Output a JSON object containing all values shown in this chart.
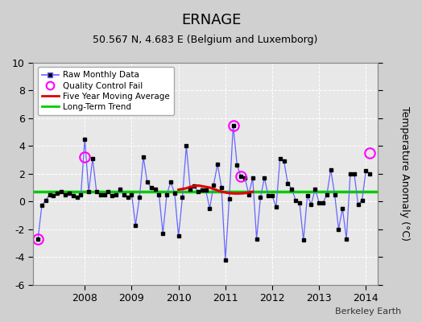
{
  "title": "ERNAGE",
  "subtitle": "50.567 N, 4.683 E (Belgium and Luxemborg)",
  "ylabel": "Temperature Anomaly (°C)",
  "credit": "Berkeley Earth",
  "ylim": [
    -6,
    10
  ],
  "yticks": [
    -6,
    -4,
    -2,
    0,
    2,
    4,
    6,
    8,
    10
  ],
  "xlim": [
    2006.9,
    2014.25
  ],
  "xticks": [
    2008,
    2009,
    2010,
    2011,
    2012,
    2013,
    2014
  ],
  "long_term_trend_y": 0.7,
  "raw_data": [
    [
      2007.0,
      -2.7
    ],
    [
      2007.083,
      -0.3
    ],
    [
      2007.167,
      0.1
    ],
    [
      2007.25,
      0.5
    ],
    [
      2007.333,
      0.4
    ],
    [
      2007.417,
      0.6
    ],
    [
      2007.5,
      0.7
    ],
    [
      2007.583,
      0.5
    ],
    [
      2007.667,
      0.6
    ],
    [
      2007.75,
      0.4
    ],
    [
      2007.833,
      0.3
    ],
    [
      2007.917,
      0.5
    ],
    [
      2008.0,
      4.5
    ],
    [
      2008.083,
      0.7
    ],
    [
      2008.167,
      3.1
    ],
    [
      2008.25,
      0.7
    ],
    [
      2008.333,
      0.5
    ],
    [
      2008.417,
      0.5
    ],
    [
      2008.5,
      0.7
    ],
    [
      2008.583,
      0.4
    ],
    [
      2008.667,
      0.5
    ],
    [
      2008.75,
      0.9
    ],
    [
      2008.833,
      0.5
    ],
    [
      2008.917,
      0.3
    ],
    [
      2009.0,
      0.5
    ],
    [
      2009.083,
      -1.7
    ],
    [
      2009.167,
      0.3
    ],
    [
      2009.25,
      3.2
    ],
    [
      2009.333,
      1.4
    ],
    [
      2009.417,
      1.0
    ],
    [
      2009.5,
      0.9
    ],
    [
      2009.583,
      0.5
    ],
    [
      2009.667,
      -2.3
    ],
    [
      2009.75,
      0.5
    ],
    [
      2009.833,
      1.4
    ],
    [
      2009.917,
      0.6
    ],
    [
      2010.0,
      -2.5
    ],
    [
      2010.083,
      0.3
    ],
    [
      2010.167,
      4.0
    ],
    [
      2010.25,
      0.9
    ],
    [
      2010.333,
      1.1
    ],
    [
      2010.417,
      0.7
    ],
    [
      2010.5,
      0.8
    ],
    [
      2010.583,
      0.8
    ],
    [
      2010.667,
      -0.5
    ],
    [
      2010.75,
      1.2
    ],
    [
      2010.833,
      2.7
    ],
    [
      2010.917,
      1.0
    ],
    [
      2011.0,
      -4.2
    ],
    [
      2011.083,
      0.2
    ],
    [
      2011.167,
      5.5
    ],
    [
      2011.25,
      2.6
    ],
    [
      2011.333,
      1.8
    ],
    [
      2011.417,
      1.7
    ],
    [
      2011.5,
      0.5
    ],
    [
      2011.583,
      1.7
    ],
    [
      2011.667,
      -2.7
    ],
    [
      2011.75,
      0.3
    ],
    [
      2011.833,
      1.7
    ],
    [
      2011.917,
      0.4
    ],
    [
      2012.0,
      0.4
    ],
    [
      2012.083,
      -0.4
    ],
    [
      2012.167,
      3.1
    ],
    [
      2012.25,
      2.9
    ],
    [
      2012.333,
      1.3
    ],
    [
      2012.417,
      0.9
    ],
    [
      2012.5,
      0.1
    ],
    [
      2012.583,
      -0.1
    ],
    [
      2012.667,
      -2.8
    ],
    [
      2012.75,
      0.4
    ],
    [
      2012.833,
      -0.2
    ],
    [
      2012.917,
      0.9
    ],
    [
      2013.0,
      -0.1
    ],
    [
      2013.083,
      -0.1
    ],
    [
      2013.167,
      0.5
    ],
    [
      2013.25,
      2.3
    ],
    [
      2013.333,
      0.5
    ],
    [
      2013.417,
      -2.0
    ],
    [
      2013.5,
      -0.5
    ],
    [
      2013.583,
      -2.7
    ],
    [
      2013.667,
      2.0
    ],
    [
      2013.75,
      2.0
    ],
    [
      2013.833,
      -0.2
    ],
    [
      2013.917,
      0.1
    ],
    [
      2014.0,
      2.2
    ],
    [
      2014.083,
      2.0
    ]
  ],
  "qc_fail": [
    [
      2007.0,
      -2.7
    ],
    [
      2008.0,
      3.2
    ],
    [
      2011.167,
      5.5
    ],
    [
      2011.333,
      1.8
    ],
    [
      2014.083,
      3.5
    ]
  ],
  "five_year_avg": [
    [
      2010.0,
      0.85
    ],
    [
      2010.083,
      0.9
    ],
    [
      2010.167,
      0.95
    ],
    [
      2010.25,
      1.05
    ],
    [
      2010.333,
      1.1
    ],
    [
      2010.417,
      1.15
    ],
    [
      2010.5,
      1.1
    ],
    [
      2010.583,
      1.05
    ],
    [
      2010.667,
      1.0
    ],
    [
      2010.75,
      0.9
    ],
    [
      2010.833,
      0.8
    ],
    [
      2010.917,
      0.7
    ],
    [
      2011.0,
      0.65
    ],
    [
      2011.083,
      0.6
    ],
    [
      2011.167,
      0.58
    ],
    [
      2011.25,
      0.57
    ],
    [
      2011.333,
      0.58
    ],
    [
      2011.417,
      0.6
    ],
    [
      2011.5,
      0.65
    ],
    [
      2011.583,
      0.7
    ]
  ],
  "line_color": "#6666ff",
  "dot_color": "#000000",
  "qc_color": "#ff00ff",
  "avg_color": "#dd0000",
  "trend_color": "#00cc00",
  "plot_bg": "#e8e8e8",
  "fig_bg": "#d0d0d0"
}
